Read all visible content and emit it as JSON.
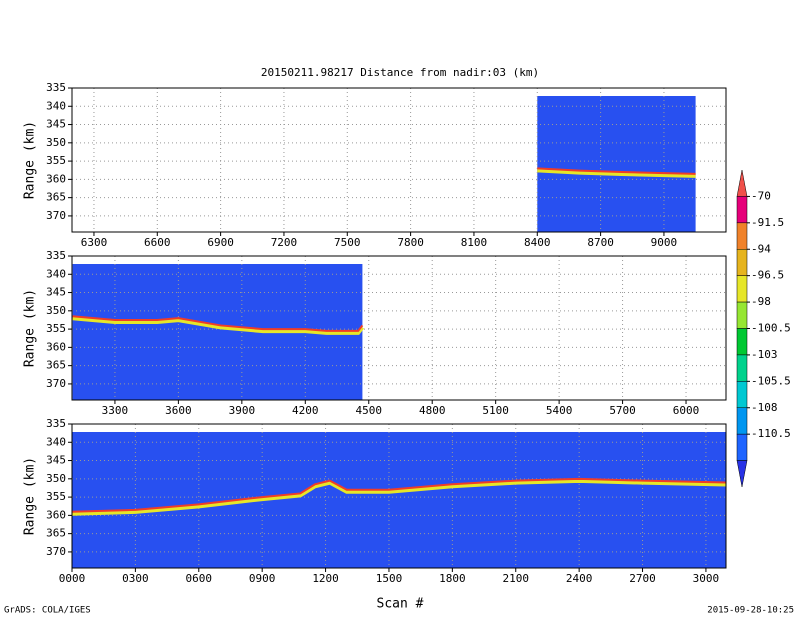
{
  "title": "20150211.98217    Distance from nadir:03 (km)",
  "footer": {
    "left": "GrADS: COLA/IGES",
    "right": "2015-09-28-10:25"
  },
  "colorbar": {
    "levels": [
      -70,
      -91.5,
      -94,
      -96.5,
      -98,
      -100.5,
      -103,
      -105.5,
      -108,
      -110.5
    ],
    "colors": [
      "#f0504a",
      "#e6007a",
      "#f0822a",
      "#e6b41e",
      "#e6e628",
      "#96e632",
      "#00c832",
      "#00d28c",
      "#00c8d2",
      "#0096f0",
      "#1e64ff",
      "#2832e6"
    ]
  },
  "chart_data": [
    {
      "type": "line",
      "ylabel": "Range (km)",
      "xlim": [
        6196,
        9294
      ],
      "ylim": [
        374.4,
        335
      ],
      "xticks": [
        6300,
        6600,
        6900,
        7200,
        7500,
        7800,
        8100,
        8400,
        8700,
        9000
      ],
      "yticks": [
        335,
        340,
        345,
        350,
        355,
        360,
        365,
        370
      ],
      "grid": true,
      "color": "#f03c28",
      "background": "#2850f0",
      "x": [
        8400,
        8500,
        8600,
        8800,
        9000,
        9150
      ],
      "values": [
        357,
        357.3,
        357.6,
        358,
        358.3,
        358.5
      ]
    },
    {
      "type": "line",
      "ylabel": "Range (km)",
      "xlim": [
        3097,
        6189
      ],
      "ylim": [
        374.4,
        335
      ],
      "xticks": [
        3300,
        3600,
        3900,
        4200,
        4500,
        4800,
        5100,
        5400,
        5700,
        6000
      ],
      "yticks": [
        335,
        340,
        345,
        350,
        355,
        360,
        365,
        370
      ],
      "grid": true,
      "color": "#f03c28",
      "background": "#2850f0",
      "x": [
        3100,
        3300,
        3500,
        3600,
        3800,
        4000,
        4200,
        4300,
        4450,
        4470
      ],
      "values": [
        351.5,
        352.5,
        352.5,
        352,
        354,
        355,
        355,
        355.5,
        355.5,
        354
      ]
    },
    {
      "type": "line",
      "ylabel": "Range (km)",
      "xlabel": "Scan #",
      "xlim": [
        0,
        3095
      ],
      "ylim": [
        374.4,
        335
      ],
      "xticks": [
        {
          "value": 0,
          "label": "0000"
        },
        {
          "value": 300,
          "label": "0300"
        },
        {
          "value": 600,
          "label": "0600"
        },
        {
          "value": 900,
          "label": "0900"
        },
        1200,
        1500,
        1800,
        2100,
        2400,
        2700,
        3000
      ],
      "yticks": [
        335,
        340,
        345,
        350,
        355,
        360,
        365,
        370
      ],
      "grid": true,
      "color": "#f03c28",
      "background": "#2850f0",
      "x": [
        0,
        300,
        600,
        900,
        1080,
        1150,
        1220,
        1300,
        1500,
        1800,
        2100,
        2400,
        2700,
        3095
      ],
      "values": [
        359,
        358.5,
        357,
        355,
        354,
        351.5,
        350.5,
        353,
        353,
        351.5,
        350.5,
        350,
        350.5,
        351
      ]
    }
  ]
}
